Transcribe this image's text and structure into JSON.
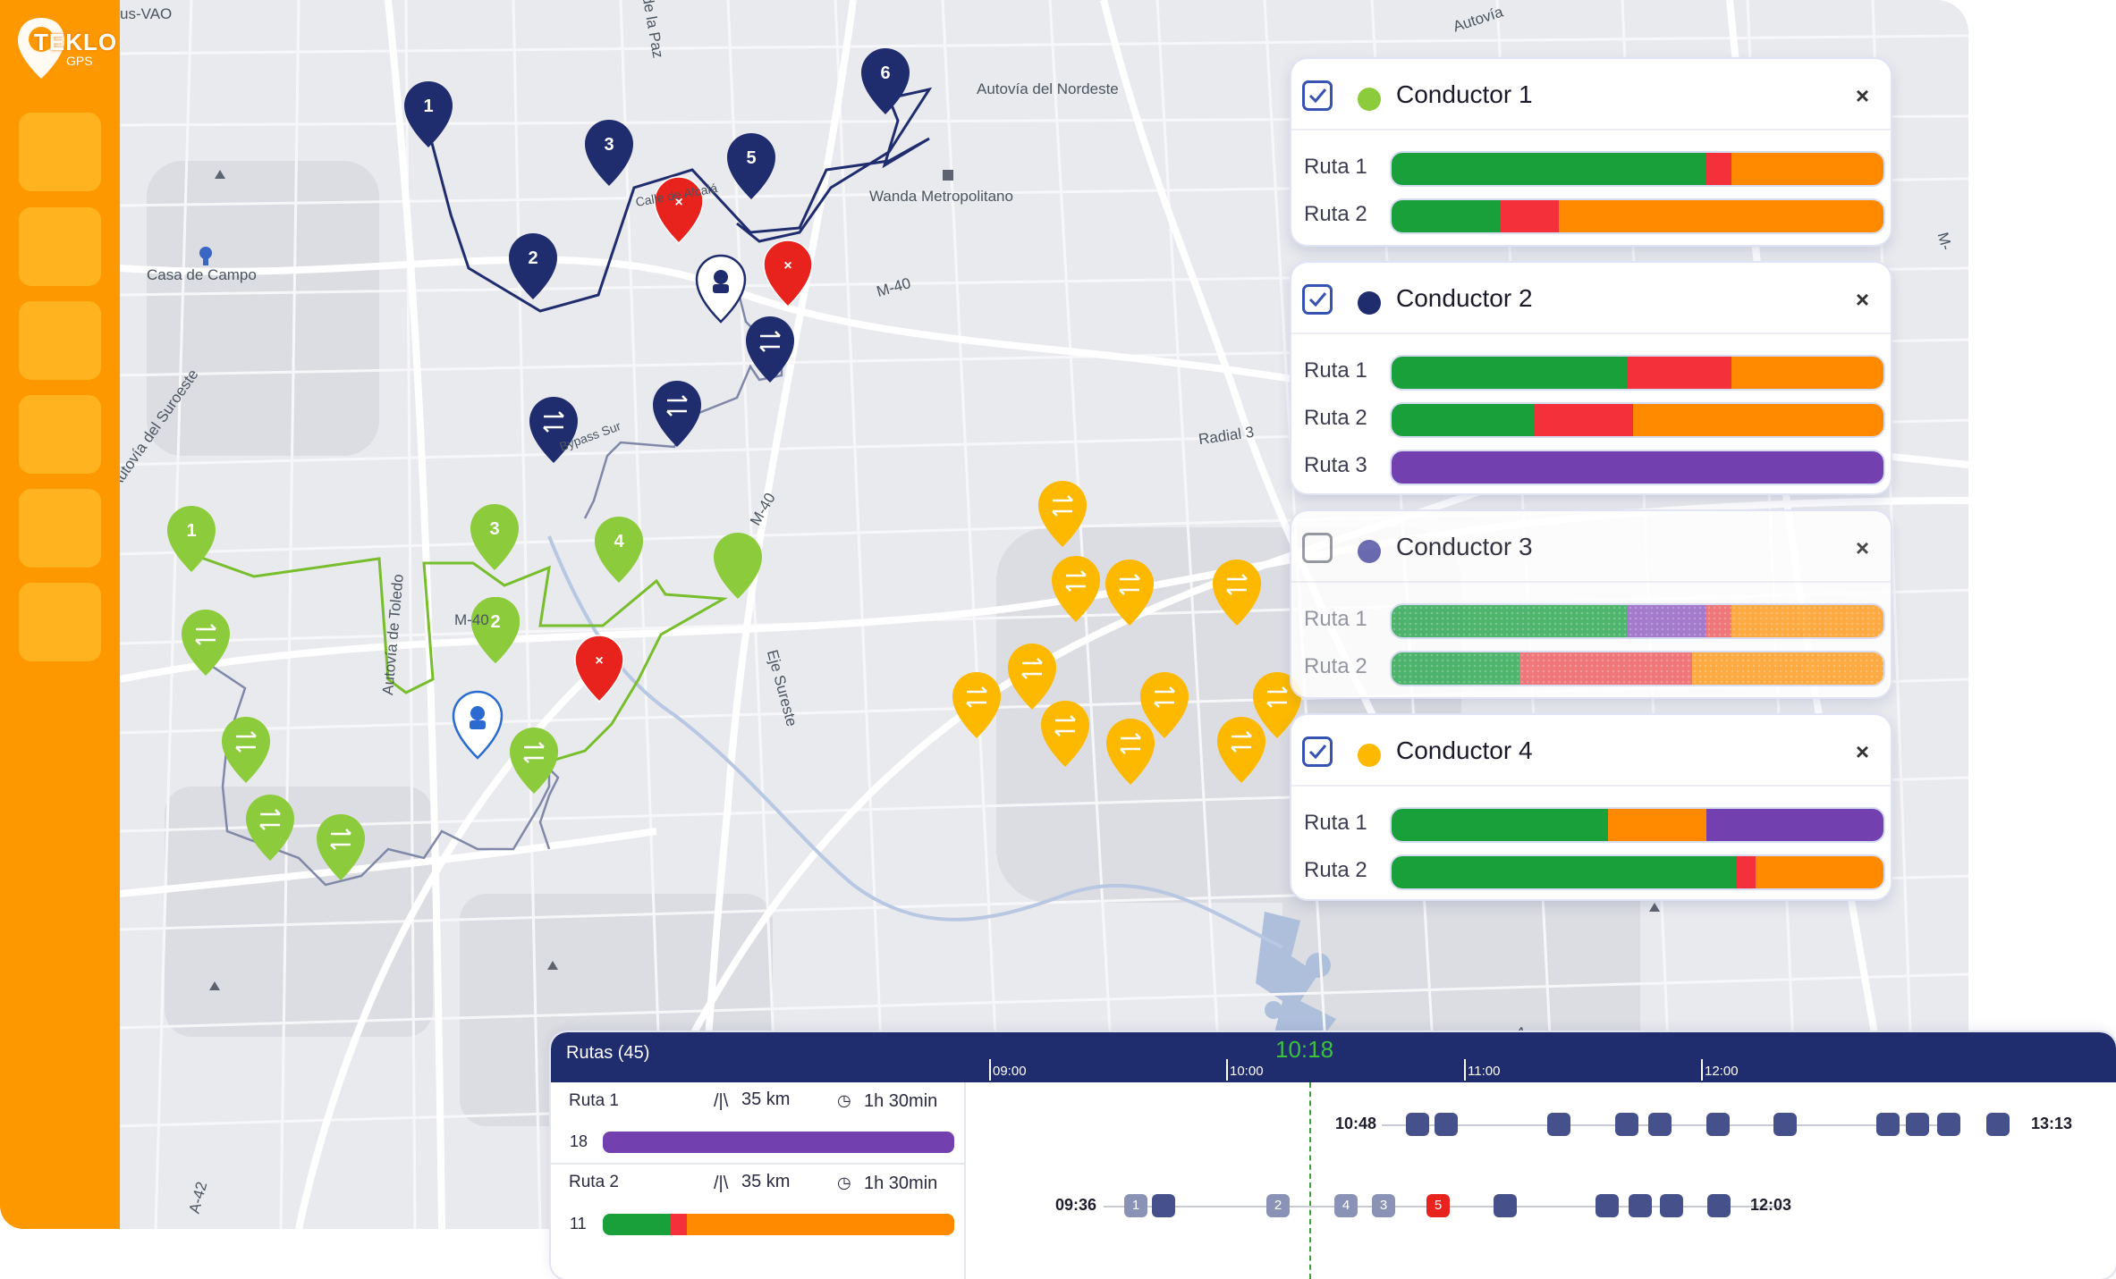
{
  "brand": {
    "logo_main": "TEKLO",
    "logo_sub": "GPS"
  },
  "map": {
    "place_labels": [
      "Casa de Campo",
      "Autovía del Nordeste",
      "Wanda Metropolitano",
      "M-40",
      "Radial 3",
      "M-40",
      "M-40",
      "Eje Sureste",
      "Autovía de Toledo",
      "Autovía del Suroeste",
      "Autovía",
      "Autovía",
      "M-",
      "A-42",
      "us-VAO",
      "de la Paz",
      "Calle de Alcalá",
      "Bypass Sur"
    ]
  },
  "drivers": [
    {
      "name": "Conductor 1",
      "checked": true,
      "color": "#8ccb3c",
      "routes": [
        {
          "label": "Ruta 1",
          "segments": [
            {
              "color": "#1aa03a",
              "pct": 64
            },
            {
              "color": "#f4303a",
              "pct": 5
            },
            {
              "color": "#ff8a00",
              "pct": 31
            }
          ]
        },
        {
          "label": "Ruta 2",
          "segments": [
            {
              "color": "#1aa03a",
              "pct": 22
            },
            {
              "color": "#f4303a",
              "pct": 12
            },
            {
              "color": "#ff8a00",
              "pct": 66
            }
          ]
        }
      ]
    },
    {
      "name": "Conductor 2",
      "checked": true,
      "color": "#1f2c6e",
      "routes": [
        {
          "label": "Ruta 1",
          "segments": [
            {
              "color": "#1aa03a",
              "pct": 48
            },
            {
              "color": "#f4303a",
              "pct": 21
            },
            {
              "color": "#ff8a00",
              "pct": 31
            }
          ]
        },
        {
          "label": "Ruta 2",
          "segments": [
            {
              "color": "#1aa03a",
              "pct": 29
            },
            {
              "color": "#f4303a",
              "pct": 20
            },
            {
              "color": "#ff8a00",
              "pct": 51
            }
          ]
        },
        {
          "label": "Ruta 3",
          "segments": [
            {
              "color": "#7340b0",
              "pct": 100
            }
          ]
        }
      ]
    },
    {
      "name": "Conductor 3",
      "checked": false,
      "color": "#5a5aa8",
      "routes": [
        {
          "label": "Ruta 1",
          "segments": [
            {
              "color": "#3aae5c",
              "pct": 48
            },
            {
              "color": "#9b6cc8",
              "pct": 16
            },
            {
              "color": "#f0686a",
              "pct": 5
            },
            {
              "color": "#ffa22a",
              "pct": 31
            }
          ]
        },
        {
          "label": "Ruta 2",
          "segments": [
            {
              "color": "#3aae5c",
              "pct": 26
            },
            {
              "color": "#f0686a",
              "pct": 35
            },
            {
              "color": "#ffa22a",
              "pct": 39
            }
          ]
        }
      ]
    },
    {
      "name": "Conductor 4",
      "checked": true,
      "color": "#fcb900",
      "routes": [
        {
          "label": "Ruta 1",
          "segments": [
            {
              "color": "#1aa03a",
              "pct": 44
            },
            {
              "color": "#ff8a00",
              "pct": 20
            },
            {
              "color": "#7340b0",
              "pct": 36
            }
          ]
        },
        {
          "label": "Ruta 2",
          "segments": [
            {
              "color": "#1aa03a",
              "pct": 70
            },
            {
              "color": "#f4303a",
              "pct": 4
            },
            {
              "color": "#ff8a00",
              "pct": 26
            }
          ]
        }
      ]
    }
  ],
  "timeline": {
    "title": "Rutas (45)",
    "now": "10:18",
    "hours": [
      "09:00",
      "10:00",
      "11:00",
      "12:00"
    ],
    "routes": [
      {
        "name": "Ruta 1",
        "distance": "35 km",
        "duration": "1h 30min",
        "count": "18",
        "segments": [
          {
            "color": "#7340b0",
            "pct": 100
          }
        ],
        "start": "10:48",
        "end": "13:13",
        "blocks": [
          "",
          "",
          "",
          "",
          "",
          "",
          "",
          "",
          "",
          "",
          ""
        ]
      },
      {
        "name": "Ruta 2",
        "distance": "35 km",
        "duration": "1h 30min",
        "count": "11",
        "segments": [
          {
            "color": "#1aa03a",
            "pct": 19
          },
          {
            "color": "#f4303a",
            "pct": 5
          },
          {
            "color": "#ff8a00",
            "pct": 76
          }
        ],
        "start": "09:36",
        "end": "12:03",
        "blocks": [
          "1",
          "",
          "2",
          "4",
          "3",
          "5",
          "",
          "",
          "",
          "",
          ""
        ]
      }
    ]
  }
}
